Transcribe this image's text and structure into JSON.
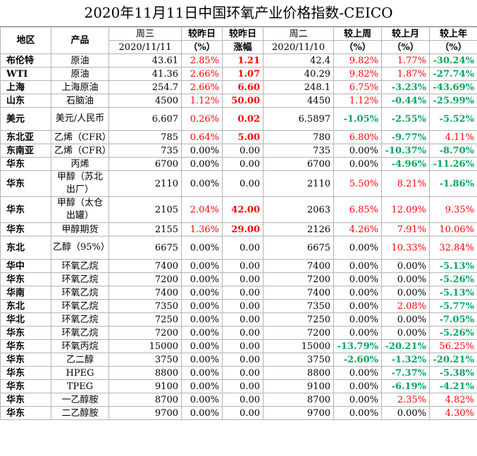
{
  "title": "2020年11月11日中国环氧产业价格指数-CEICO",
  "colors": {
    "red": "#ff0000",
    "green": "#00a65a"
  },
  "header_row1": [
    "地区",
    "产品",
    "周三",
    "较昨日",
    "较昨日",
    "周二",
    "较上周",
    "较上月",
    "较上年"
  ],
  "header_row2": [
    "2020/11/11",
    "（%）",
    "涨幅",
    "2020/11/10",
    "（%）",
    "（%）",
    "（%）"
  ],
  "rows": [
    {
      "region": "布伦特",
      "product": "原油",
      "wed": "43.61",
      "pct_day": "2.85%",
      "inc": "1.21",
      "tue": "42.4",
      "pct_week": "9.82%",
      "pct_month": "1.77%",
      "pct_year": "-30.24%"
    },
    {
      "region": "WTI",
      "product": "原油",
      "wed": "41.36",
      "pct_day": "2.66%",
      "inc": "1.07",
      "tue": "40.29",
      "pct_week": "9.82%",
      "pct_month": "1.87%",
      "pct_year": "-27.74%"
    },
    {
      "region": "上海",
      "product": "上海原油",
      "wed": "254.7",
      "pct_day": "2.66%",
      "inc": "6.60",
      "tue": "248.1",
      "pct_week": "6.75%",
      "pct_month": "-3.23%",
      "pct_year": "-43.69%"
    },
    {
      "region": "山东",
      "product": "石脑油",
      "wed": "4500",
      "pct_day": "1.12%",
      "inc": "50.00",
      "tue": "4450",
      "pct_week": "1.12%",
      "pct_month": "-0.44%",
      "pct_year": "-25.99%"
    },
    {
      "region": "美元",
      "product": "美元/人民币",
      "wed": "6.607",
      "pct_day": "0.26%",
      "inc": "0.02",
      "tue": "6.5897",
      "pct_week": "-1.05%",
      "pct_month": "-2.55%",
      "pct_year": "-5.52%"
    },
    {
      "region": "东北亚",
      "product": "乙烯（CFR）",
      "wed": "785",
      "pct_day": "0.64%",
      "inc": "5.00",
      "tue": "780",
      "pct_week": "6.80%",
      "pct_month": "-9.77%",
      "pct_year": "4.11%"
    },
    {
      "region": "东南亚",
      "product": "乙烯（CFR）",
      "wed": "735",
      "pct_day": "0.00%",
      "inc": "0.00",
      "tue": "735",
      "pct_week": "0.00%",
      "pct_month": "-10.37%",
      "pct_year": "-8.70%"
    },
    {
      "region": "华东",
      "product": "丙烯",
      "wed": "6700",
      "pct_day": "0.00%",
      "inc": "0.00",
      "tue": "6700",
      "pct_week": "0.00%",
      "pct_month": "-4.96%",
      "pct_year": "-11.26%"
    },
    {
      "region": "华东",
      "product": "甲醇（苏北出厂）",
      "wed": "2110",
      "pct_day": "0.00%",
      "inc": "0.00",
      "tue": "2110",
      "pct_week": "5.50%",
      "pct_month": "8.21%",
      "pct_year": "-1.86%"
    },
    {
      "region": "华东",
      "product": "甲醇（太仓出罐）",
      "wed": "2105",
      "pct_day": "2.04%",
      "inc": "42.00",
      "tue": "2063",
      "pct_week": "6.85%",
      "pct_month": "12.09%",
      "pct_year": "9.35%"
    },
    {
      "region": "华东",
      "product": "甲醇期货",
      "wed": "2155",
      "pct_day": "1.36%",
      "inc": "29.00",
      "tue": "2126",
      "pct_week": "4.26%",
      "pct_month": "7.91%",
      "pct_year": "10.06%"
    },
    {
      "region": "东北",
      "product": "乙醇（95%）",
      "wed": "6675",
      "pct_day": "0.00%",
      "inc": "0.00",
      "tue": "6675",
      "pct_week": "0.00%",
      "pct_month": "10.33%",
      "pct_year": "32.84%"
    },
    {
      "region": "华中",
      "product": "环氧乙烷",
      "wed": "7400",
      "pct_day": "0.00%",
      "inc": "0.00",
      "tue": "7400",
      "pct_week": "0.00%",
      "pct_month": "0.00%",
      "pct_year": "-5.13%"
    },
    {
      "region": "华东",
      "product": "环氧乙烷",
      "wed": "7200",
      "pct_day": "0.00%",
      "inc": "0.00",
      "tue": "7200",
      "pct_week": "0.00%",
      "pct_month": "0.00%",
      "pct_year": "-5.26%"
    },
    {
      "region": "华南",
      "product": "环氧乙烷",
      "wed": "7400",
      "pct_day": "0.00%",
      "inc": "0.00",
      "tue": "7400",
      "pct_week": "0.00%",
      "pct_month": "0.00%",
      "pct_year": "-5.13%"
    },
    {
      "region": "东北",
      "product": "环氧乙烷",
      "wed": "7350",
      "pct_day": "0.00%",
      "inc": "0.00",
      "tue": "7350",
      "pct_week": "0.00%",
      "pct_month": "2.08%",
      "pct_year": "-5.77%"
    },
    {
      "region": "华北",
      "product": "环氧乙烷",
      "wed": "7250",
      "pct_day": "0.00%",
      "inc": "0.00",
      "tue": "7250",
      "pct_week": "0.00%",
      "pct_month": "0.00%",
      "pct_year": "-7.05%"
    },
    {
      "region": "华东",
      "product": "环氧乙烷",
      "wed": "7200",
      "pct_day": "0.00%",
      "inc": "0.00",
      "tue": "7200",
      "pct_week": "0.00%",
      "pct_month": "0.00%",
      "pct_year": "-5.26%"
    },
    {
      "region": "华东",
      "product": "环氧丙烷",
      "wed": "15000",
      "pct_day": "0.00%",
      "inc": "0.00",
      "tue": "15000",
      "pct_week": "-13.79%",
      "pct_month": "-20.21%",
      "pct_year": "56.25%"
    },
    {
      "region": "华东",
      "product": "乙二醇",
      "wed": "3750",
      "pct_day": "0.00%",
      "inc": "0.00",
      "tue": "3750",
      "pct_week": "-2.60%",
      "pct_month": "-1.32%",
      "pct_year": "-20.21%"
    },
    {
      "region": "华东",
      "product": "HPEG",
      "wed": "8800",
      "pct_day": "0.00%",
      "inc": "0.00",
      "tue": "8800",
      "pct_week": "0.00%",
      "pct_month": "-7.37%",
      "pct_year": "-5.38%"
    },
    {
      "region": "华东",
      "product": "TPEG",
      "wed": "9100",
      "pct_day": "0.00%",
      "inc": "0.00",
      "tue": "9100",
      "pct_week": "0.00%",
      "pct_month": "-6.19%",
      "pct_year": "-4.21%"
    },
    {
      "region": "华东",
      "product": "一乙醇胺",
      "wed": "8700",
      "pct_day": "0.00%",
      "inc": "0.00",
      "tue": "8700",
      "pct_week": "0.00%",
      "pct_month": "2.35%",
      "pct_year": "4.82%"
    },
    {
      "region": "华东",
      "product": "二乙醇胺",
      "wed": "9700",
      "pct_day": "0.00%",
      "inc": "0.00",
      "tue": "9700",
      "pct_week": "0.00%",
      "pct_month": "0.00%",
      "pct_year": "4.30%"
    }
  ]
}
